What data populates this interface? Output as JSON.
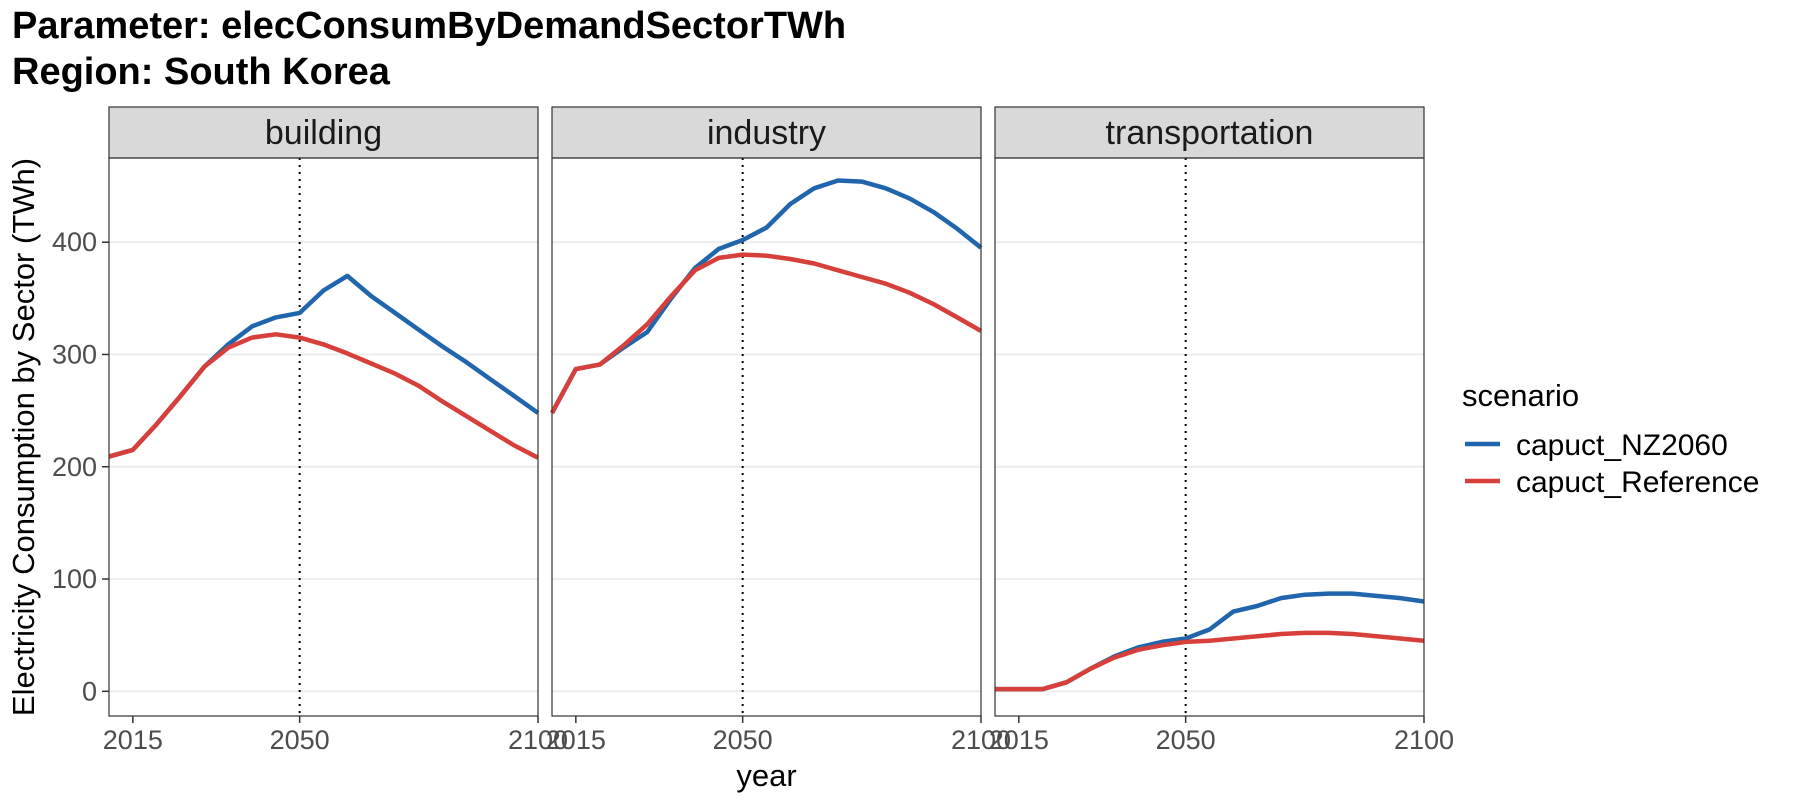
{
  "title": {
    "line1": "Parameter: elecConsumByDemandSectorTWh",
    "line2": "Region: South Korea"
  },
  "chart_data": {
    "type": "line",
    "facets": [
      "building",
      "industry",
      "transportation"
    ],
    "xlabel": "year",
    "ylabel": "Electricity Consumption by Sector (TWh)",
    "xlim": [
      2010,
      2100
    ],
    "ylim": [
      -22,
      475
    ],
    "xticks": [
      2015,
      2050,
      2100
    ],
    "yticks": [
      0,
      100,
      200,
      300,
      400
    ],
    "vline_x": 2050,
    "grid": true,
    "legend_title": "scenario",
    "legend_position": "right",
    "colors": {
      "capuct_NZ2060": "#2166ac",
      "capuct_Reference": "#d73f3a"
    },
    "x": [
      2010,
      2015,
      2020,
      2025,
      2030,
      2035,
      2040,
      2045,
      2050,
      2055,
      2060,
      2065,
      2070,
      2075,
      2080,
      2085,
      2090,
      2095,
      2100
    ],
    "panels": [
      {
        "facet": "building",
        "series": [
          {
            "name": "capuct_NZ2060",
            "values": [
              209,
              215,
              238,
              263,
              289,
              309,
              325,
              333,
              337,
              357,
              370,
              352,
              337,
              322,
              307,
              293,
              278,
              263,
              248
            ]
          },
          {
            "name": "capuct_Reference",
            "values": [
              209,
              215,
              238,
              263,
              289,
              306,
              315,
              318,
              315,
              309,
              301,
              292,
              283,
              272,
              258,
              245,
              232,
              219,
              208
            ]
          }
        ]
      },
      {
        "facet": "industry",
        "series": [
          {
            "name": "capuct_NZ2060",
            "values": [
              248,
              287,
              291,
              306,
              320,
              350,
              377,
              394,
              402,
              413,
              434,
              448,
              455,
              454,
              448,
              439,
              427,
              412,
              395
            ]
          },
          {
            "name": "capuct_Reference",
            "values": [
              248,
              287,
              291,
              308,
              327,
              352,
              375,
              386,
              389,
              388,
              385,
              381,
              375,
              369,
              363,
              355,
              345,
              333,
              321
            ]
          }
        ]
      },
      {
        "facet": "transportation",
        "series": [
          {
            "name": "capuct_NZ2060",
            "values": [
              2,
              2,
              2,
              8,
              20,
              31,
              39,
              44,
              47,
              55,
              71,
              76,
              83,
              86,
              87,
              87,
              85,
              83,
              80
            ]
          },
          {
            "name": "capuct_Reference",
            "values": [
              2,
              2,
              2,
              8,
              20,
              30,
              37,
              41,
              44,
              45,
              47,
              49,
              51,
              52,
              52,
              51,
              49,
              47,
              45
            ]
          }
        ]
      }
    ]
  }
}
